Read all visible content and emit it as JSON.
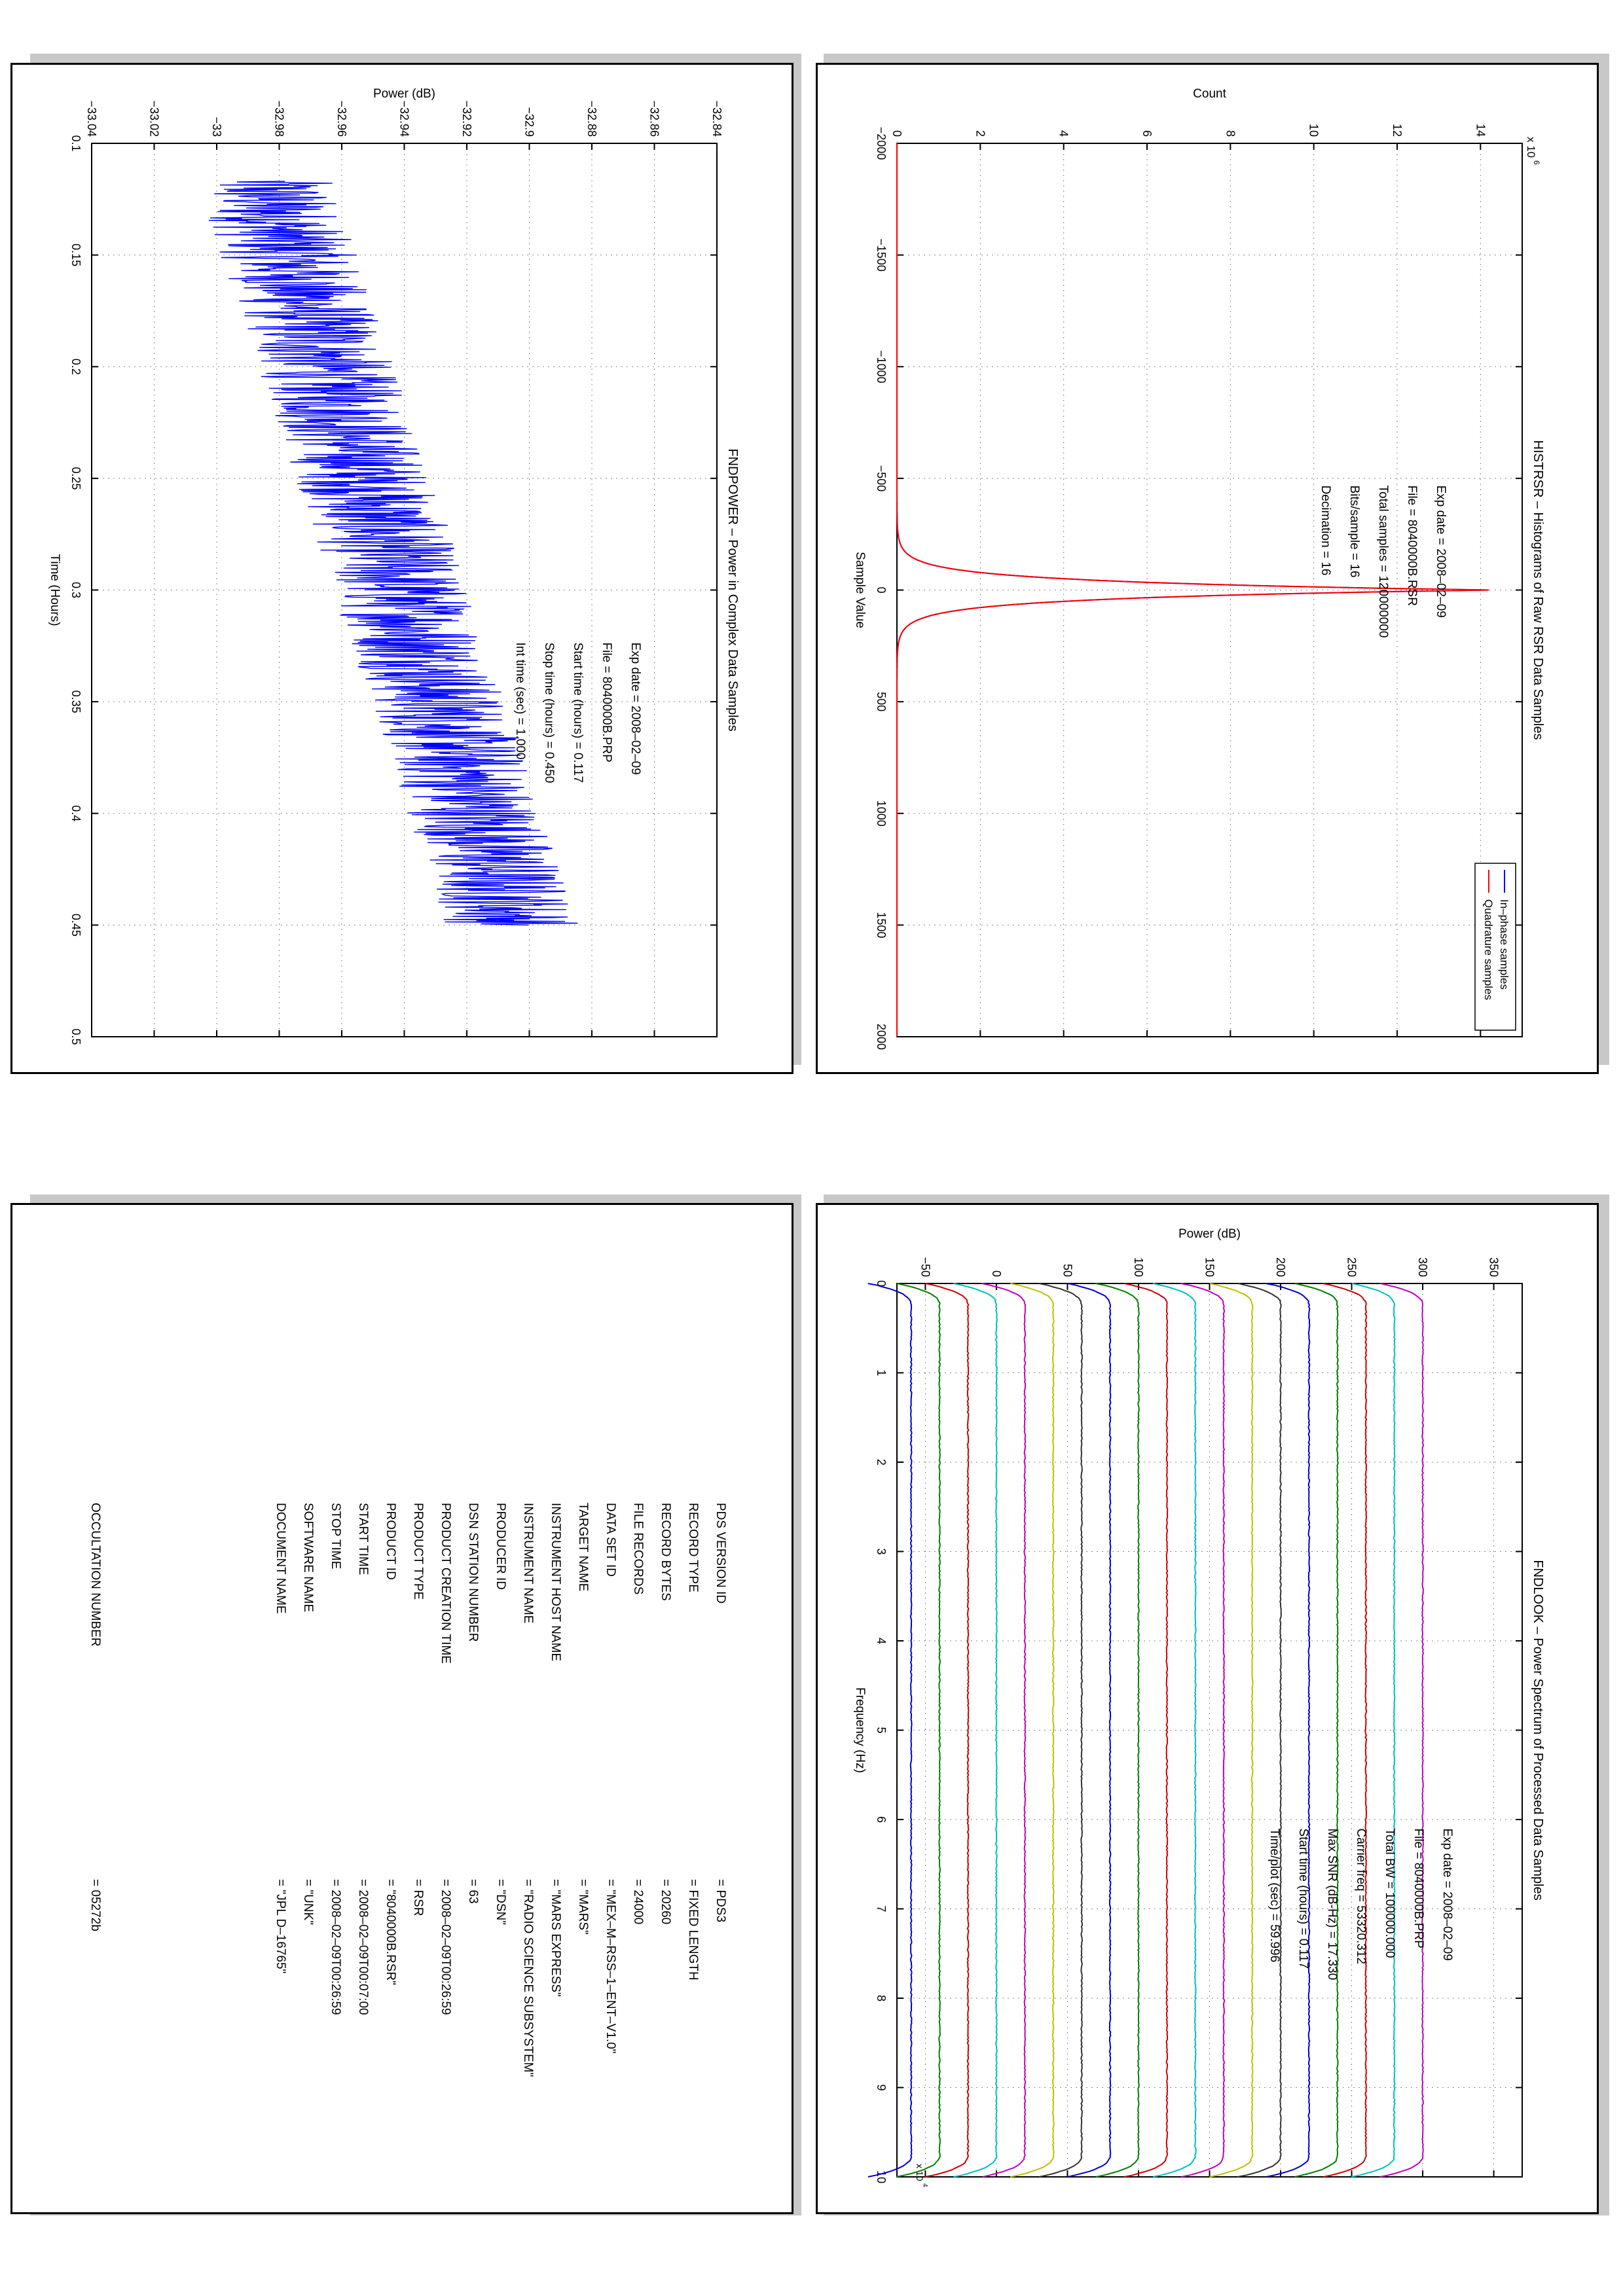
{
  "panels": {
    "histrsr": {
      "title": "HISTRSR – Histograms of Raw RSR Data Samples",
      "info": [
        {
          "label": "Exp date = 2008–02–09"
        },
        {
          "label": "File = 8040000B.RSR"
        },
        {
          "label": "Total samples =  120000000"
        },
        {
          "label": "Bits/sample    =       16"
        },
        {
          "label": "Decimation     =       16"
        }
      ]
    },
    "fndpower": {
      "title": "FNDPOWER – Power in Complex Data Samples",
      "info": [
        {
          "label": "Exp date = 2008–02–09"
        },
        {
          "label": "File = 8040000B.PRP"
        },
        {
          "label": "Start time (hours) =   0.117"
        },
        {
          "label": "Stop time (hours) =   0.450"
        },
        {
          "label": "Int time (sec) =   1.000"
        }
      ]
    },
    "fndlook": {
      "title": "FNDLOOK – Power Spectrum of Processed Data Samples",
      "info": [
        {
          "label": "Exp date = 2008–02–09"
        },
        {
          "label": "File = 8040000B.PRP"
        },
        {
          "label": "Total BW =    100000.000"
        },
        {
          "label": "Carrier freq =   53320.312"
        },
        {
          "label": "Max SNR (dB-Hz) =     17.330"
        },
        {
          "label": "Start time (hours) =   0.117"
        },
        {
          "label": "Time/plot (sec) =    59.996"
        }
      ]
    },
    "label": {
      "rows": [
        {
          "key": "PDS VERSION ID",
          "value": "=  PDS3"
        },
        {
          "key": "RECORD TYPE",
          "value": "=  FIXED LENGTH"
        },
        {
          "key": "RECORD BYTES",
          "value": "=  20260"
        },
        {
          "key": "FILE RECORDS",
          "value": "=  24000"
        },
        {
          "key": "DATA SET ID",
          "value": "=  \"MEX–M–RSS–1–ENT–V1.0\""
        },
        {
          "key": "TARGET NAME",
          "value": "=  \"MARS\""
        },
        {
          "key": "INSTRUMENT HOST NAME",
          "value": "=  \"MARS EXPRESS\""
        },
        {
          "key": "INSTRUMENT NAME",
          "value": "=  \"RADIO SCIENCE SUBSYSTEM\""
        },
        {
          "key": "PRODUCER ID",
          "value": "=  \"DSN\""
        },
        {
          "key": "DSN STATION NUMBER",
          "value": "=  63"
        },
        {
          "key": "PRODUCT CREATION TIME",
          "value": "=  2008–02–09T00:26:59"
        },
        {
          "key": "PRODUCT TYPE",
          "value": "=  RSR"
        },
        {
          "key": "PRODUCT ID",
          "value": "=  \"8040000B.RSR\""
        },
        {
          "key": "START TIME",
          "value": "=  2008–02–09T00:07:00"
        },
        {
          "key": "STOP TIME",
          "value": "=  2008–02–09T00:26:59"
        },
        {
          "key": "SOFTWARE NAME",
          "value": "=  \"UNK\""
        },
        {
          "key": "DOCUMENT NAME",
          "value": "=  \"JPL D–16765\""
        },
        {
          "key": "OCCULTATION NUMBER",
          "value": "=  05272b"
        }
      ]
    }
  },
  "chart_data": [
    {
      "type": "line",
      "title": "HISTRSR – Histograms of Raw RSR Data Samples",
      "xlabel": "Sample Value",
      "ylabel": "Count",
      "xlim": [
        -2000,
        2000
      ],
      "ylim": [
        0,
        15
      ],
      "y_multiplier": "x 10^6",
      "xticks": [
        "−2000",
        "−1500",
        "−1000",
        "−500",
        "0",
        "500",
        "1000",
        "1500",
        "2000"
      ],
      "yticks": [
        "0",
        "2",
        "4",
        "6",
        "8",
        "10",
        "12",
        "14"
      ],
      "legend": "top-right",
      "grid": true,
      "series": [
        {
          "name": "In–phase samples",
          "color": "#0000ff",
          "peak_count_x1e6": 14.2,
          "center": 0,
          "sigma": 40
        },
        {
          "name": "Quadrature samples",
          "color": "#ff0000",
          "peak_count_x1e6": 14.2,
          "center": 0,
          "sigma": 40
        }
      ]
    },
    {
      "type": "line",
      "title": "FNDPOWER – Power in Complex Data Samples",
      "xlabel": "Time (Hours)",
      "ylabel": "Power (dB)",
      "xlim": [
        0.1,
        0.5
      ],
      "ylim": [
        -33.04,
        -32.84
      ],
      "xticks": [
        "0.1",
        "0.15",
        "0.2",
        "0.25",
        "0.3",
        "0.35",
        "0.4",
        "0.45",
        "0.5"
      ],
      "yticks": [
        "−33.04",
        "−33.02",
        "−33",
        "−32.98",
        "−32.96",
        "−32.94",
        "−32.92",
        "−32.9",
        "−32.88",
        "−32.86",
        "−32.84"
      ],
      "grid": true,
      "series": [
        {
          "color": "#0000ff",
          "x_start": 0.117,
          "x_end": 0.45,
          "y_start": -32.985,
          "y_end": -32.905,
          "noise_amplitude": 0.022
        }
      ]
    },
    {
      "type": "line",
      "title": "FNDLOOK – Power Spectrum of Processed Data Samples",
      "xlabel": "Frequency (Hz)",
      "ylabel": "Power (dB)",
      "xlim": [
        0,
        100000
      ],
      "ylim": [
        -70,
        370
      ],
      "x_multiplier": "x 10^4",
      "xticks": [
        "0",
        "1",
        "2",
        "3",
        "4",
        "5",
        "6",
        "7",
        "8",
        "9",
        "10"
      ],
      "yticks": [
        "−50",
        "0",
        "50",
        "100",
        "150",
        "200",
        "250",
        "300",
        "350"
      ],
      "grid": true,
      "series": [
        {
          "color": "#0000cc",
          "level": -60
        },
        {
          "color": "#007f00",
          "level": -40
        },
        {
          "color": "#cc0000",
          "level": -20
        },
        {
          "color": "#00bfbf",
          "level": 0
        },
        {
          "color": "#bf00bf",
          "level": 20
        },
        {
          "color": "#bfbf00",
          "level": 40
        },
        {
          "color": "#333333",
          "level": 60
        },
        {
          "color": "#0000cc",
          "level": 80
        },
        {
          "color": "#007f00",
          "level": 100
        },
        {
          "color": "#cc0000",
          "level": 120
        },
        {
          "color": "#00bfbf",
          "level": 140
        },
        {
          "color": "#bf00bf",
          "level": 160
        },
        {
          "color": "#bfbf00",
          "level": 180
        },
        {
          "color": "#333333",
          "level": 200
        },
        {
          "color": "#0000cc",
          "level": 220
        },
        {
          "color": "#007f00",
          "level": 240
        },
        {
          "color": "#cc0000",
          "level": 260
        },
        {
          "color": "#00bfbf",
          "level": 280
        },
        {
          "color": "#bf00bf",
          "level": 300
        }
      ]
    }
  ]
}
